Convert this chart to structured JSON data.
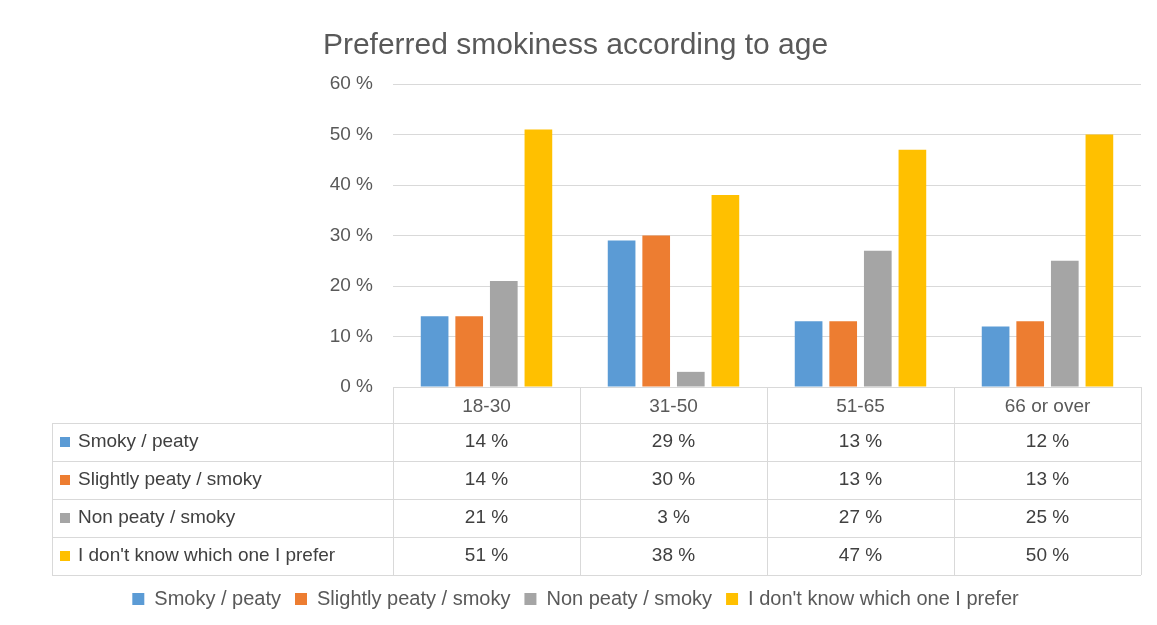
{
  "chart_data": {
    "type": "bar",
    "title": "Preferred smokiness according to age",
    "categories": [
      "18-30",
      "31-50",
      "51-65",
      "66 or over"
    ],
    "series": [
      {
        "name": "Smoky / peaty",
        "color": "#5b9bd5",
        "values": [
          14,
          29,
          13,
          12
        ],
        "value_labels": [
          "14 %",
          "29 %",
          "13 %",
          "12 %"
        ]
      },
      {
        "name": "Slightly peaty / smoky",
        "color": "#ed7d31",
        "values": [
          14,
          30,
          13,
          13
        ],
        "value_labels": [
          "14 %",
          "30 %",
          "13 %",
          "13 %"
        ]
      },
      {
        "name": "Non peaty / smoky",
        "color": "#a5a5a5",
        "values": [
          21,
          3,
          27,
          25
        ],
        "value_labels": [
          "21 %",
          "3 %",
          "27 %",
          "25 %"
        ]
      },
      {
        "name": "I don't know which one I prefer",
        "color": "#ffc000",
        "values": [
          51,
          38,
          47,
          50
        ],
        "value_labels": [
          "51 %",
          "38 %",
          "47 %",
          "50 %"
        ]
      }
    ],
    "ylim": [
      0,
      60
    ],
    "yticks": [
      {
        "value": 0,
        "label": "0 %"
      },
      {
        "value": 10,
        "label": "10 %"
      },
      {
        "value": 20,
        "label": "20 %"
      },
      {
        "value": 30,
        "label": "30 %"
      },
      {
        "value": 40,
        "label": "40 %"
      },
      {
        "value": 50,
        "label": "50 %"
      },
      {
        "value": 60,
        "label": "60 %"
      }
    ],
    "grid": "y",
    "legend": "bottom"
  }
}
